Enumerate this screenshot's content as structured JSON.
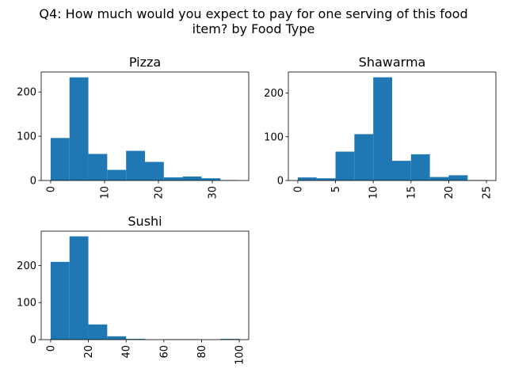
{
  "figure": {
    "title_line1": "Q4: How much would you expect to pay for one serving of this food",
    "title_line2": "item? by Food Type",
    "bar_color": "#1f77b4"
  },
  "chart_data": [
    {
      "type": "bar",
      "title": "Pizza",
      "bin_edges": [
        0,
        3.5,
        7,
        10.5,
        14,
        17.5,
        21,
        24.5,
        28,
        31.5,
        35
      ],
      "values": [
        96,
        233,
        60,
        24,
        67,
        42,
        7,
        9,
        5,
        1
      ],
      "xticks": [
        0,
        10,
        20,
        30
      ],
      "yticks": [
        0,
        100,
        200
      ],
      "xlim": [
        -1.75,
        36.75
      ],
      "ylim": [
        0,
        245
      ],
      "grid": false
    },
    {
      "type": "bar",
      "title": "Shawarma",
      "bin_edges": [
        0,
        2.5,
        5,
        7.5,
        10,
        12.5,
        15,
        17.5,
        20,
        22.5,
        25
      ],
      "values": [
        7,
        5,
        66,
        106,
        236,
        45,
        60,
        8,
        12,
        1
      ],
      "xticks": [
        0,
        5,
        10,
        15,
        20,
        25
      ],
      "yticks": [
        0,
        100,
        200
      ],
      "xlim": [
        -1.25,
        26.25
      ],
      "ylim": [
        0,
        248
      ],
      "grid": false
    },
    {
      "type": "bar",
      "title": "Sushi",
      "bin_edges": [
        0,
        10,
        20,
        30,
        40,
        50,
        60,
        70,
        80,
        90,
        100
      ],
      "values": [
        210,
        279,
        41,
        9,
        2,
        0,
        1,
        1,
        0,
        2
      ],
      "xticks": [
        0,
        20,
        40,
        60,
        80,
        100
      ],
      "yticks": [
        0,
        100,
        200
      ],
      "xlim": [
        -5,
        105
      ],
      "ylim": [
        0,
        293
      ],
      "grid": false
    }
  ]
}
